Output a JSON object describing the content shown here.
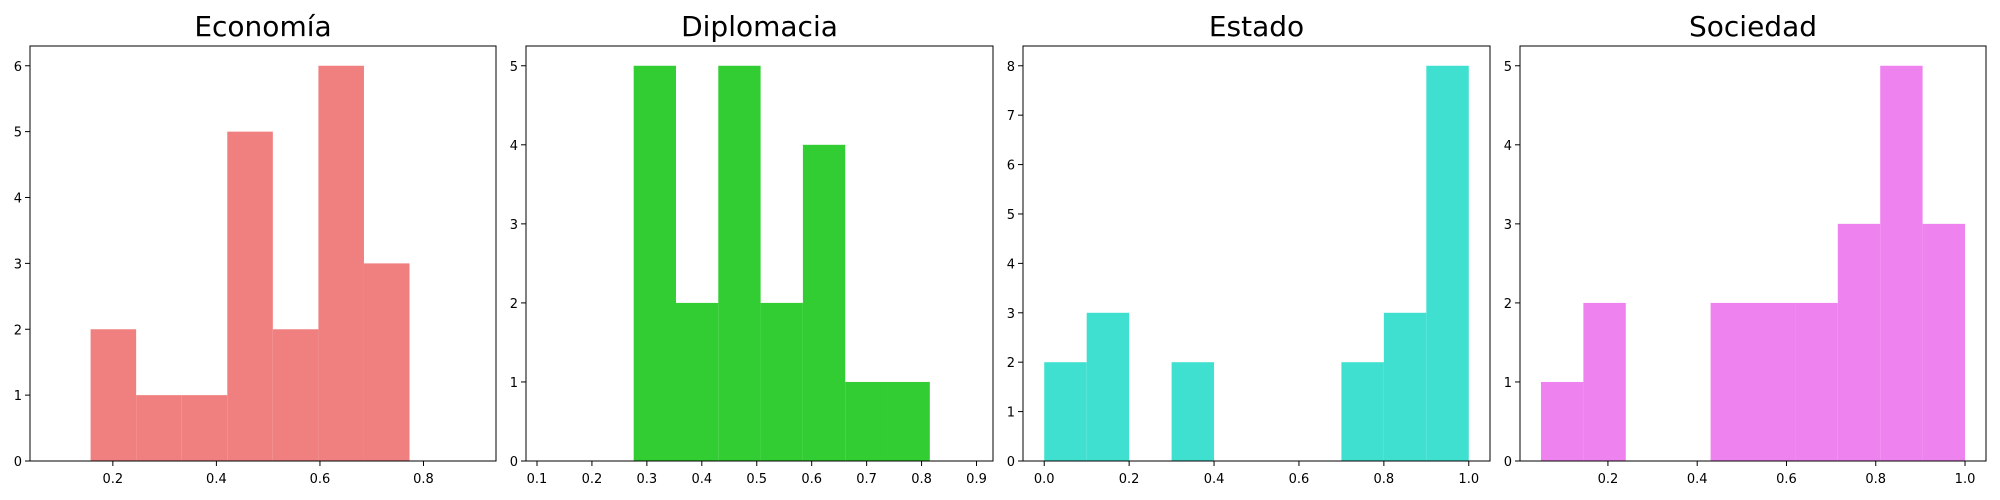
{
  "chart_data": [
    {
      "type": "bar",
      "title": "Economía",
      "color": "#f08080",
      "xlim": [
        0.04,
        0.94
      ],
      "ylim": [
        0,
        6.3
      ],
      "xticks": [
        0.2,
        0.4,
        0.6,
        0.8
      ],
      "xtick_labels": [
        "0.2",
        "0.4",
        "0.6",
        "0.8"
      ],
      "yticks": [
        0,
        1,
        2,
        3,
        4,
        5,
        6
      ],
      "ytick_labels": [
        "0",
        "1",
        "2",
        "3",
        "4",
        "5",
        "6"
      ],
      "bins": [
        {
          "x0": 0.157,
          "x1": 0.245,
          "count": 2
        },
        {
          "x0": 0.245,
          "x1": 0.333,
          "count": 1
        },
        {
          "x0": 0.333,
          "x1": 0.421,
          "count": 1
        },
        {
          "x0": 0.421,
          "x1": 0.509,
          "count": 5
        },
        {
          "x0": 0.509,
          "x1": 0.597,
          "count": 2
        },
        {
          "x0": 0.597,
          "x1": 0.685,
          "count": 6
        },
        {
          "x0": 0.685,
          "x1": 0.773,
          "count": 3
        }
      ]
    },
    {
      "type": "bar",
      "title": "Diplomacia",
      "color": "#32cd32",
      "xlim": [
        0.08,
        0.93
      ],
      "ylim": [
        0,
        5.25
      ],
      "xticks": [
        0.1,
        0.2,
        0.3,
        0.4,
        0.5,
        0.6,
        0.7,
        0.8,
        0.9
      ],
      "xtick_labels": [
        "0.1",
        "0.2",
        "0.3",
        "0.4",
        "0.5",
        "0.6",
        "0.7",
        "0.8",
        "0.9"
      ],
      "yticks": [
        0,
        1,
        2,
        3,
        4,
        5
      ],
      "ytick_labels": [
        "0",
        "1",
        "2",
        "3",
        "4",
        "5"
      ],
      "bins": [
        {
          "x0": 0.276,
          "x1": 0.353,
          "count": 5
        },
        {
          "x0": 0.353,
          "x1": 0.43,
          "count": 2
        },
        {
          "x0": 0.43,
          "x1": 0.507,
          "count": 5
        },
        {
          "x0": 0.507,
          "x1": 0.584,
          "count": 2
        },
        {
          "x0": 0.584,
          "x1": 0.661,
          "count": 4
        },
        {
          "x0": 0.661,
          "x1": 0.738,
          "count": 1
        },
        {
          "x0": 0.738,
          "x1": 0.815,
          "count": 1
        }
      ]
    },
    {
      "type": "bar",
      "title": "Estado",
      "color": "#40e0d0",
      "xlim": [
        -0.05,
        1.05
      ],
      "ylim": [
        0,
        8.4
      ],
      "xticks": [
        0.0,
        0.2,
        0.4,
        0.6,
        0.8,
        1.0
      ],
      "xtick_labels": [
        "0.0",
        "0.2",
        "0.4",
        "0.6",
        "0.8",
        "1.0"
      ],
      "yticks": [
        0,
        1,
        2,
        3,
        4,
        5,
        6,
        7,
        8
      ],
      "ytick_labels": [
        "0",
        "1",
        "2",
        "3",
        "4",
        "5",
        "6",
        "7",
        "8"
      ],
      "bins": [
        {
          "x0": 0.0,
          "x1": 0.1,
          "count": 2
        },
        {
          "x0": 0.1,
          "x1": 0.2,
          "count": 3
        },
        {
          "x0": 0.3,
          "x1": 0.4,
          "count": 2
        },
        {
          "x0": 0.7,
          "x1": 0.8,
          "count": 2
        },
        {
          "x0": 0.8,
          "x1": 0.9,
          "count": 3
        },
        {
          "x0": 0.9,
          "x1": 1.0,
          "count": 8
        }
      ]
    },
    {
      "type": "bar",
      "title": "Sociedad",
      "color": "#ee82ee",
      "xlim": [
        0.003,
        1.047
      ],
      "ylim": [
        0,
        5.25
      ],
      "xticks": [
        0.2,
        0.4,
        0.6,
        0.8,
        1.0
      ],
      "xtick_labels": [
        "0.2",
        "0.4",
        "0.6",
        "0.8",
        "1.0"
      ],
      "yticks": [
        0,
        1,
        2,
        3,
        4,
        5
      ],
      "ytick_labels": [
        "0",
        "1",
        "2",
        "3",
        "4",
        "5"
      ],
      "bins": [
        {
          "x0": 0.05,
          "x1": 0.145,
          "count": 1
        },
        {
          "x0": 0.145,
          "x1": 0.24,
          "count": 2
        },
        {
          "x0": 0.43,
          "x1": 0.525,
          "count": 2
        },
        {
          "x0": 0.525,
          "x1": 0.62,
          "count": 2
        },
        {
          "x0": 0.62,
          "x1": 0.715,
          "count": 2
        },
        {
          "x0": 0.715,
          "x1": 0.81,
          "count": 3
        },
        {
          "x0": 0.81,
          "x1": 0.905,
          "count": 5
        },
        {
          "x0": 0.905,
          "x1": 1.0,
          "count": 3
        }
      ]
    }
  ]
}
